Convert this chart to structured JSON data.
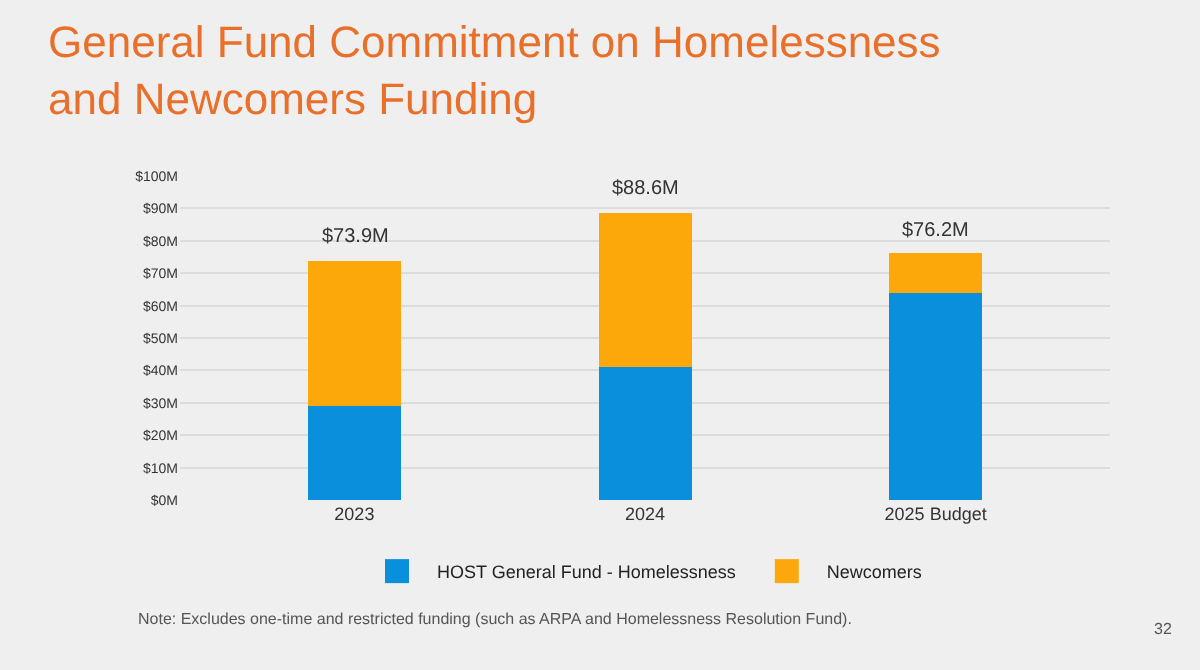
{
  "chart_data": {
    "type": "bar",
    "title": "General Fund Commitment on Homelessness\nand Newcomers Funding",
    "categories": [
      "2023",
      "2024",
      "2025 Budget"
    ],
    "series": [
      {
        "name": "HOST General Fund - Homelessness",
        "color": "#0a8fdc",
        "values": [
          29,
          41,
          64
        ]
      },
      {
        "name": "Newcomers",
        "color": "#fca80a",
        "values": [
          44.9,
          47.6,
          12.2
        ]
      }
    ],
    "stacked": true,
    "totals": [
      "$73.9M",
      "$88.6M",
      "$76.2M"
    ],
    "ylim": [
      0,
      100
    ],
    "yticks": [
      {
        "value": 0,
        "label": "$0M"
      },
      {
        "value": 10,
        "label": "$10M"
      },
      {
        "value": 20,
        "label": "$20M"
      },
      {
        "value": 30,
        "label": "$30M"
      },
      {
        "value": 40,
        "label": "$40M"
      },
      {
        "value": 50,
        "label": "$50M"
      },
      {
        "value": 60,
        "label": "$60M"
      },
      {
        "value": 70,
        "label": "$70M"
      },
      {
        "value": 80,
        "label": "$80M"
      },
      {
        "value": 90,
        "label": "$90M"
      },
      {
        "value": 100,
        "label": "$100M"
      }
    ],
    "grid": "y",
    "legend": "bottom",
    "annotations": [
      "Note: Excludes one-time and restricted funding (such as ARPA and Homelessness Resolution Fund).",
      "32"
    ]
  }
}
